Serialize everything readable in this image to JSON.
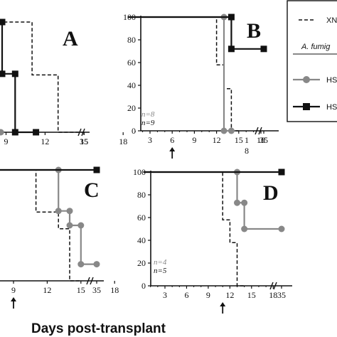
{
  "figure": {
    "xlabel": "Days post-transplant",
    "legend": {
      "items": [
        {
          "label": "XN",
          "style": "dashed",
          "color": "#111111"
        },
        {
          "label": "A. fumig",
          "style": "text"
        },
        {
          "label": "HS",
          "style": "gray-circle",
          "color": "#777777"
        },
        {
          "label": "HS",
          "style": "black-square",
          "color": "#111111"
        }
      ]
    }
  },
  "chart_data": [
    {
      "type": "line",
      "panel": "A",
      "xticks": [
        "9",
        "12",
        "15",
        "18",
        "35"
      ],
      "yticks": [],
      "xlim": [
        6.2,
        35
      ],
      "ylim": [
        0,
        100
      ],
      "axis_break": true,
      "series": [
        {
          "style": "dashed",
          "points": [
            [
              6.2,
              100
            ],
            [
              11,
              100
            ],
            [
              11,
              52
            ],
            [
              13,
              52
            ],
            [
              13,
              0
            ],
            [
              15,
              0
            ]
          ]
        },
        {
          "style": "black-square",
          "points": [
            [
              6.2,
              100
            ],
            [
              7.2,
              100
            ],
            [
              7.2,
              100
            ],
            [
              8.7,
              100
            ],
            [
              8.7,
              53
            ],
            [
              9.7,
              53
            ],
            [
              9.7,
              0
            ],
            [
              11.3,
              0
            ]
          ]
        },
        {
          "style": "gray-circle",
          "points": [
            [
              6.2,
              100
            ],
            [
              7.4,
              100
            ],
            [
              7.4,
              0
            ],
            [
              8.6,
              0
            ]
          ]
        }
      ]
    },
    {
      "type": "line",
      "panel": "B",
      "xticks": [
        "3",
        "6",
        "9",
        "12",
        "15",
        "18",
        "35"
      ],
      "yticks": [
        "0",
        "20",
        "40",
        "60",
        "80",
        "100"
      ],
      "xlim": [
        0,
        35
      ],
      "ylim": [
        0,
        100
      ],
      "axis_break": true,
      "arrow_day": "6",
      "n_labels": [
        {
          "text": "n=8",
          "color": "#888888"
        },
        {
          "text": "n=9",
          "color": "#111111"
        }
      ],
      "series": [
        {
          "style": "dashed",
          "points": [
            [
              0,
              100
            ],
            [
              12,
              100
            ],
            [
              12,
              58
            ],
            [
              13,
              58
            ],
            [
              13,
              37
            ],
            [
              14,
              37
            ],
            [
              14,
              0
            ],
            [
              15,
              0
            ]
          ]
        },
        {
          "style": "gray-circle",
          "points": [
            [
              0,
              100
            ],
            [
              13,
              100
            ],
            [
              13,
              0
            ],
            [
              14,
              0
            ]
          ]
        },
        {
          "style": "black-square",
          "points": [
            [
              0,
              100
            ],
            [
              14,
              100
            ],
            [
              14,
              72
            ],
            [
              35,
              72
            ]
          ]
        }
      ]
    },
    {
      "type": "line",
      "panel": "C",
      "xticks": [
        "9",
        "12",
        "15",
        "18",
        "35"
      ],
      "yticks": [],
      "xlim": [
        6.2,
        35
      ],
      "ylim": [
        0,
        100
      ],
      "axis_break": true,
      "arrow_day": "9",
      "series": [
        {
          "style": "dashed",
          "points": [
            [
              6.2,
              100
            ],
            [
              11,
              100
            ],
            [
              11,
              62
            ],
            [
              13,
              62
            ],
            [
              13,
              47
            ],
            [
              14,
              47
            ],
            [
              14,
              0
            ],
            [
              15,
              0
            ]
          ]
        },
        {
          "style": "gray-circle",
          "points": [
            [
              6.2,
              100
            ],
            [
              13,
              100
            ],
            [
              13,
              63
            ],
            [
              14,
              63
            ],
            [
              14,
              50
            ],
            [
              15,
              50
            ],
            [
              15,
              15
            ],
            [
              35,
              15
            ]
          ]
        },
        {
          "style": "black-square",
          "points": [
            [
              6.2,
              100
            ],
            [
              35,
              100
            ]
          ]
        }
      ]
    },
    {
      "type": "line",
      "panel": "D",
      "xticks": [
        "3",
        "6",
        "9",
        "12",
        "15",
        "18",
        "35"
      ],
      "yticks": [
        "0",
        "20",
        "40",
        "60",
        "80",
        "100"
      ],
      "xlim": [
        0,
        35
      ],
      "ylim": [
        0,
        100
      ],
      "axis_break": true,
      "arrow_day": "11",
      "n_labels": [
        {
          "text": "n=4",
          "color": "#888888"
        },
        {
          "text": "n=5",
          "color": "#111111"
        }
      ],
      "series": [
        {
          "style": "dashed",
          "points": [
            [
              0,
              100
            ],
            [
              11,
              100
            ],
            [
              11,
              58
            ],
            [
              12,
              58
            ],
            [
              12,
              38
            ],
            [
              13,
              38
            ],
            [
              13,
              0
            ],
            [
              14,
              0
            ]
          ]
        },
        {
          "style": "gray-circle",
          "points": [
            [
              0,
              100
            ],
            [
              13,
              100
            ],
            [
              13,
              73
            ],
            [
              14,
              73
            ],
            [
              14,
              50
            ],
            [
              35,
              50
            ]
          ]
        },
        {
          "style": "black-square",
          "points": [
            [
              0,
              100
            ],
            [
              35,
              100
            ]
          ]
        }
      ]
    }
  ]
}
